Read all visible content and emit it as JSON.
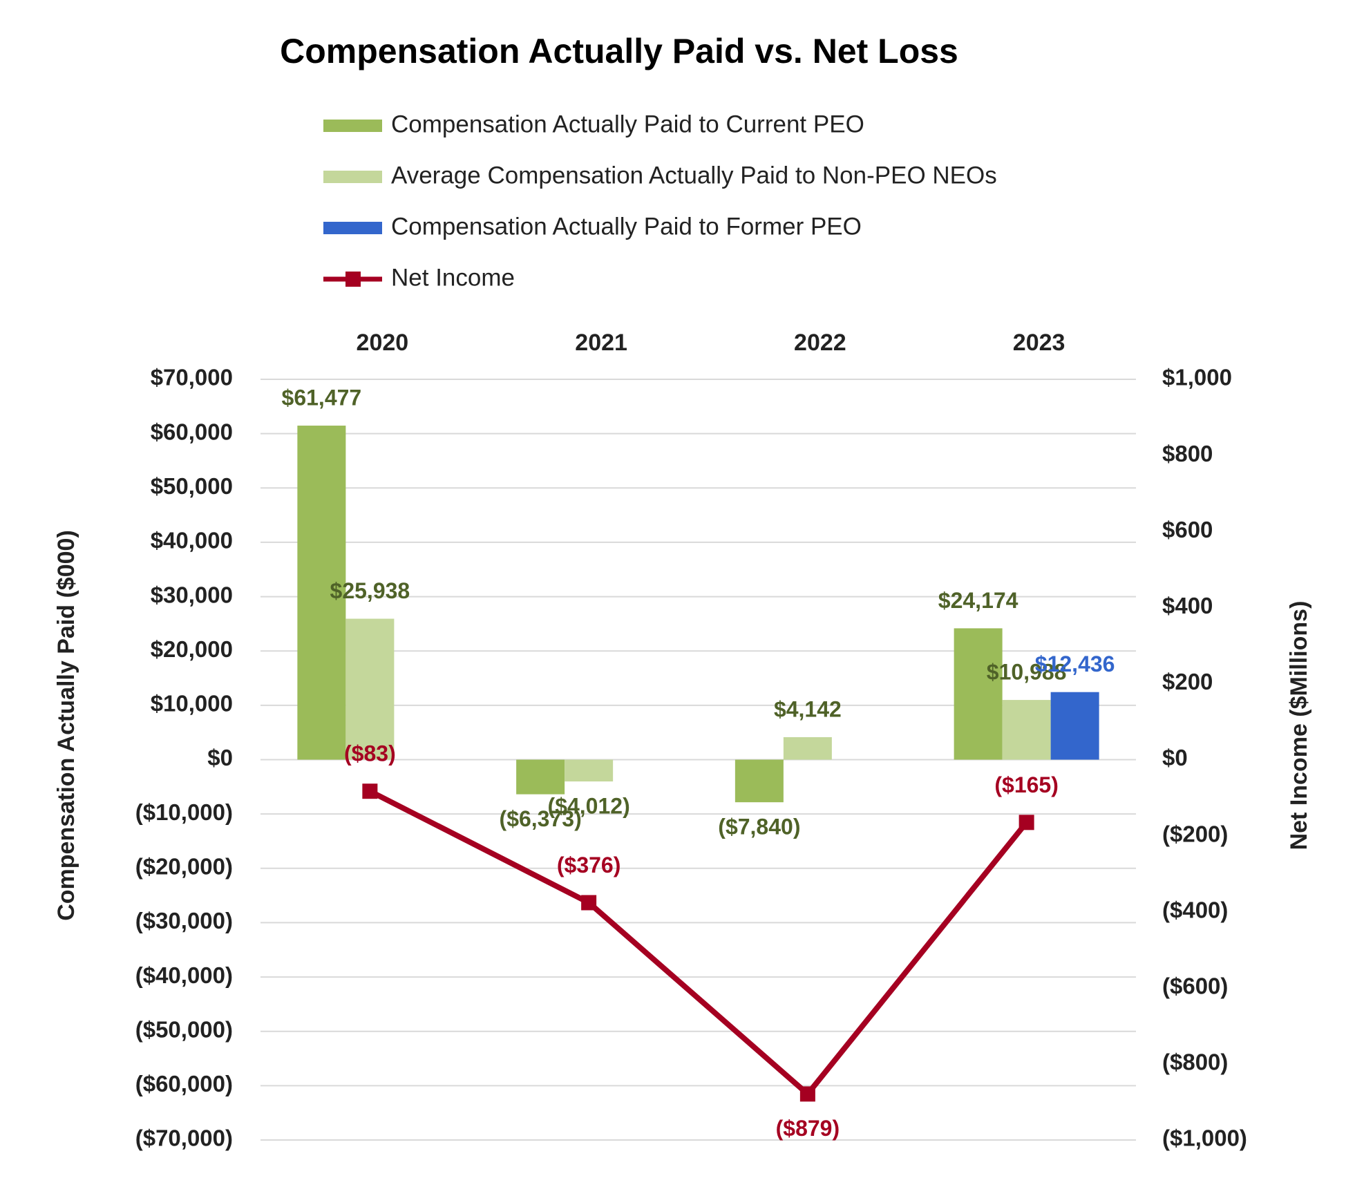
{
  "chart_data": {
    "type": "bar",
    "title": "Compensation Actually Paid vs. Net Loss",
    "categories": [
      "2020",
      "2021",
      "2022",
      "2023"
    ],
    "y_label": "Compensation Actually Paid ($000)",
    "y2_label": "Net Income ($Millions)",
    "ylim": [
      -70000,
      70000
    ],
    "yticks": [
      {
        "value": 70000,
        "label": "$70,000"
      },
      {
        "value": 60000,
        "label": "$60,000"
      },
      {
        "value": 50000,
        "label": "$50,000"
      },
      {
        "value": 40000,
        "label": "$40,000"
      },
      {
        "value": 30000,
        "label": "$30,000"
      },
      {
        "value": 20000,
        "label": "$20,000"
      },
      {
        "value": 10000,
        "label": "$10,000"
      },
      {
        "value": 0,
        "label": "$0"
      },
      {
        "value": -10000,
        "label": "($10,000)"
      },
      {
        "value": -20000,
        "label": "($20,000)"
      },
      {
        "value": -30000,
        "label": "($30,000)"
      },
      {
        "value": -40000,
        "label": "($40,000)"
      },
      {
        "value": -50000,
        "label": "($50,000)"
      },
      {
        "value": -60000,
        "label": "($60,000)"
      },
      {
        "value": -70000,
        "label": "($70,000)"
      }
    ],
    "y2lim": [
      -1000,
      1000
    ],
    "y2ticks": [
      {
        "value": 1000,
        "label": "$1,000"
      },
      {
        "value": 800,
        "label": "$800"
      },
      {
        "value": 600,
        "label": "$600"
      },
      {
        "value": 400,
        "label": "$400"
      },
      {
        "value": 200,
        "label": "$200"
      },
      {
        "value": 0,
        "label": "$0"
      },
      {
        "value": -200,
        "label": "($200)"
      },
      {
        "value": -400,
        "label": "($400)"
      },
      {
        "value": -600,
        "label": "($600)"
      },
      {
        "value": -800,
        "label": "($800)"
      },
      {
        "value": -1000,
        "label": "($1,000)"
      }
    ],
    "grid": true,
    "series": [
      {
        "name": "Compensation Actually Paid to Current PEO",
        "color": "#9bbb59",
        "label_color": "#4f6228",
        "values": [
          61477,
          -6373,
          -7840,
          24174
        ],
        "value_labels": [
          "$61,477",
          "($6,373)",
          "($7,840)",
          "$24,174"
        ]
      },
      {
        "name": "Average Compensation Actually Paid to Non-PEO NEOs",
        "color": "#c4d79b",
        "label_color": "#4f6228",
        "values": [
          25938,
          -4012,
          4142,
          10988
        ],
        "value_labels": [
          "$25,938",
          "($4,012)",
          "$4,142",
          "$10,988"
        ]
      },
      {
        "name": "Compensation Actually Paid to Former PEO",
        "color": "#3366cc",
        "label_color": "#3366cc",
        "values": [
          null,
          null,
          null,
          12436
        ],
        "value_labels": [
          null,
          null,
          null,
          "$12,436"
        ]
      },
      {
        "name": "Net Income",
        "type": "line",
        "axis": "y2",
        "color": "#a50021",
        "label_color": "#a50021",
        "values": [
          -83,
          -376,
          -879,
          -165
        ],
        "value_labels": [
          "($83)",
          "($376)",
          "($879)",
          "($165)"
        ]
      }
    ]
  }
}
